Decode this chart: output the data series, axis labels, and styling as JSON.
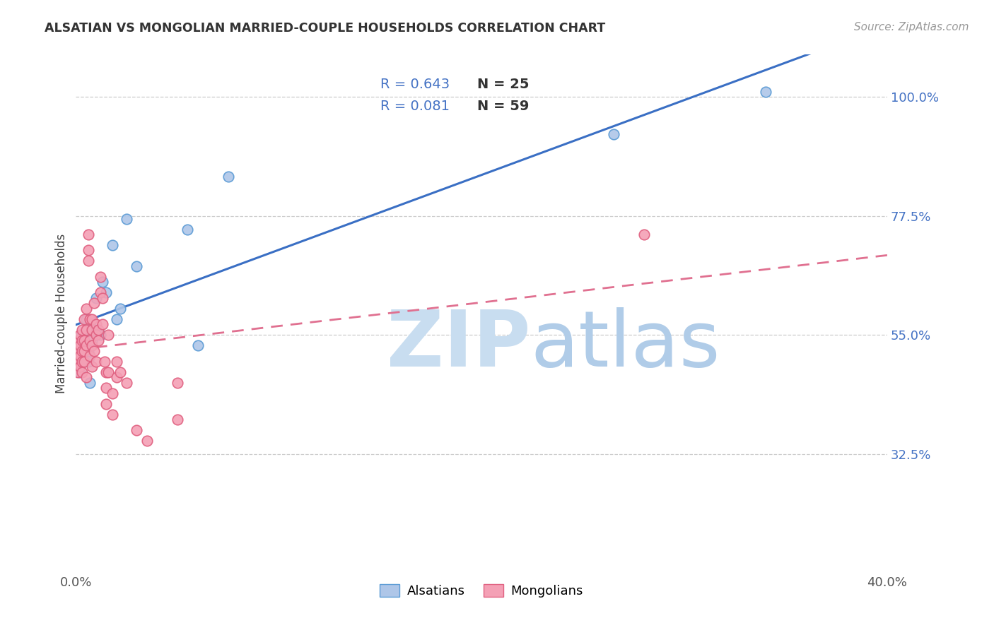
{
  "title": "ALSATIAN VS MONGOLIAN MARRIED-COUPLE HOUSEHOLDS CORRELATION CHART",
  "source": "Source: ZipAtlas.com",
  "ylabel": "Married-couple Households",
  "xlim": [
    0.0,
    0.4
  ],
  "ylim": [
    0.1,
    1.08
  ],
  "xtick_positions": [
    0.0,
    0.4
  ],
  "xtick_labels": [
    "0.0%",
    "40.0%"
  ],
  "ytick_positions": [
    0.325,
    0.55,
    0.775,
    1.0
  ],
  "ytick_labels": [
    "32.5%",
    "55.0%",
    "77.5%",
    "100.0%"
  ],
  "grid_color": "#cccccc",
  "background_color": "#ffffff",
  "alsatian_face_color": "#aec6e8",
  "mongolian_face_color": "#f4a0b5",
  "alsatian_edge_color": "#5b9bd5",
  "mongolian_edge_color": "#e06080",
  "alsatian_line_color": "#3a6fc4",
  "mongolian_line_color": "#e07090",
  "legend_r1": "R = 0.643",
  "legend_n1": "N = 25",
  "legend_r2": "R = 0.081",
  "legend_n2": "N = 59",
  "legend_r_color": "#4472c4",
  "legend_n_color": "#333333",
  "alsatian_x": [
    0.002,
    0.003,
    0.003,
    0.005,
    0.005,
    0.006,
    0.006,
    0.007,
    0.007,
    0.008,
    0.01,
    0.01,
    0.012,
    0.013,
    0.015,
    0.018,
    0.02,
    0.022,
    0.025,
    0.03,
    0.055,
    0.06,
    0.075,
    0.265,
    0.34
  ],
  "alsatian_y": [
    0.48,
    0.52,
    0.55,
    0.58,
    0.53,
    0.5,
    0.52,
    0.57,
    0.46,
    0.54,
    0.62,
    0.56,
    0.55,
    0.65,
    0.63,
    0.72,
    0.58,
    0.6,
    0.77,
    0.68,
    0.75,
    0.53,
    0.85,
    0.93,
    1.01
  ],
  "mongolian_x": [
    0.001,
    0.001,
    0.001,
    0.001,
    0.002,
    0.002,
    0.002,
    0.002,
    0.003,
    0.003,
    0.003,
    0.003,
    0.003,
    0.004,
    0.004,
    0.004,
    0.004,
    0.005,
    0.005,
    0.005,
    0.005,
    0.006,
    0.006,
    0.006,
    0.007,
    0.007,
    0.007,
    0.008,
    0.008,
    0.008,
    0.008,
    0.009,
    0.009,
    0.01,
    0.01,
    0.01,
    0.011,
    0.011,
    0.012,
    0.012,
    0.013,
    0.013,
    0.014,
    0.015,
    0.015,
    0.015,
    0.016,
    0.016,
    0.018,
    0.018,
    0.02,
    0.02,
    0.022,
    0.025,
    0.03,
    0.035,
    0.05,
    0.05,
    0.28
  ],
  "mongolian_y": [
    0.5,
    0.52,
    0.48,
    0.54,
    0.51,
    0.53,
    0.49,
    0.55,
    0.5,
    0.52,
    0.54,
    0.56,
    0.48,
    0.58,
    0.52,
    0.54,
    0.5,
    0.53,
    0.56,
    0.6,
    0.47,
    0.71,
    0.74,
    0.69,
    0.58,
    0.51,
    0.54,
    0.53,
    0.56,
    0.49,
    0.58,
    0.61,
    0.52,
    0.55,
    0.5,
    0.57,
    0.54,
    0.56,
    0.66,
    0.63,
    0.62,
    0.57,
    0.5,
    0.45,
    0.48,
    0.42,
    0.55,
    0.48,
    0.4,
    0.44,
    0.47,
    0.5,
    0.48,
    0.46,
    0.37,
    0.35,
    0.39,
    0.46,
    0.74
  ],
  "watermark_zip_color": "#c8ddf0",
  "watermark_atlas_color": "#b0cce8",
  "marker_size": 110
}
